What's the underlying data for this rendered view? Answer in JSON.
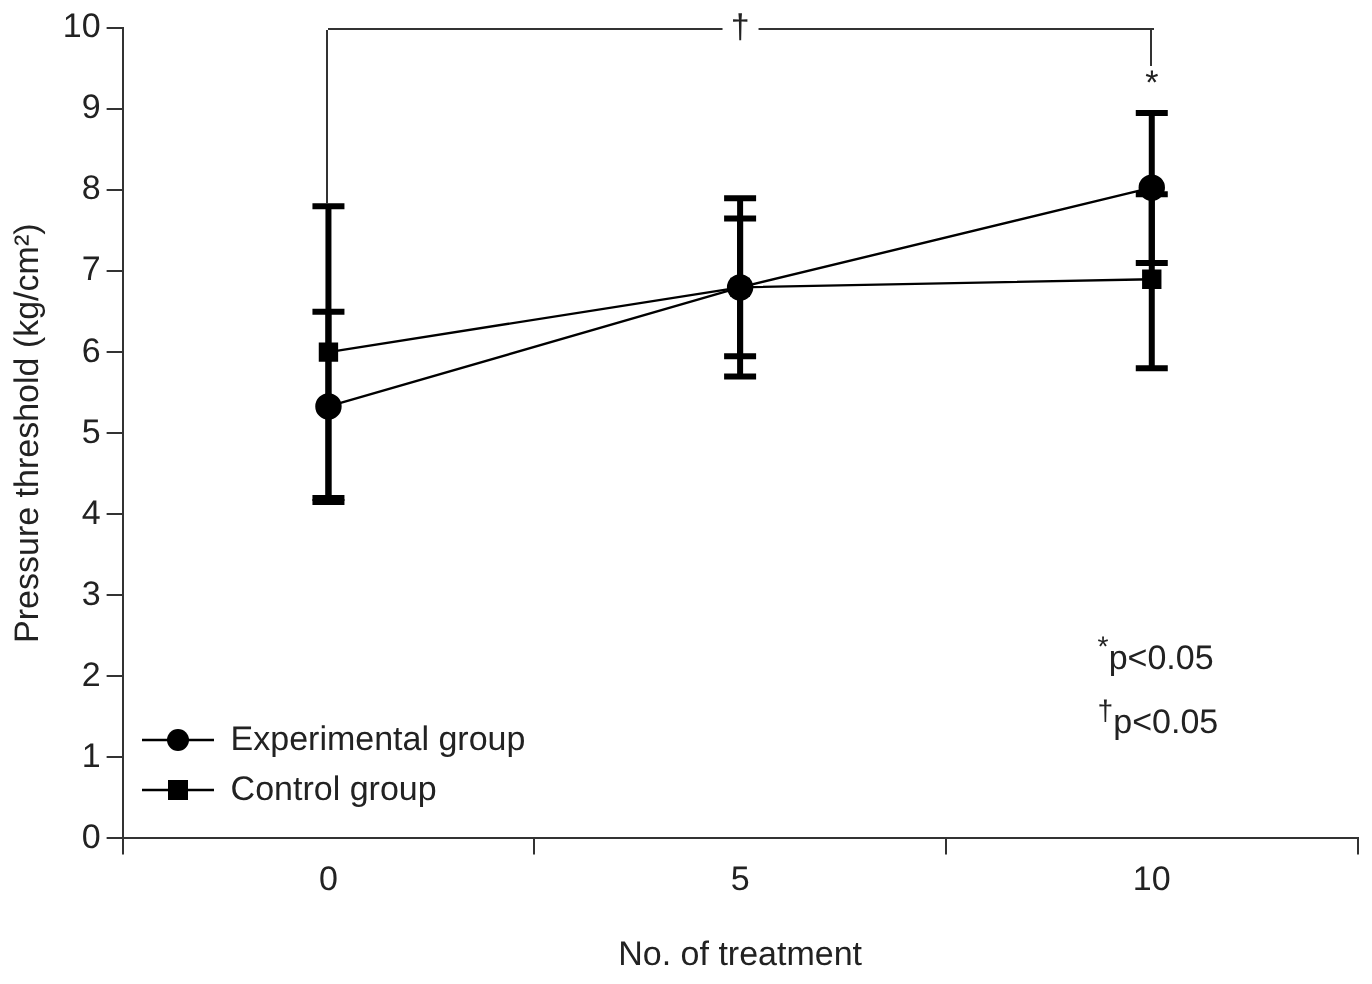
{
  "chart_data": {
    "type": "line",
    "xlabel": "No. of treatment",
    "ylabel": "Pressure threshold (kg/cm²)",
    "categories": [
      "0",
      "5",
      "10"
    ],
    "ylim": [
      0,
      10
    ],
    "yticks": [
      0,
      1,
      2,
      3,
      4,
      5,
      6,
      7,
      8,
      9,
      10
    ],
    "grid": false,
    "legend": "bottom left",
    "series": [
      {
        "name": "Experimental group",
        "color": "#000000",
        "marker": "circle",
        "values": [
          5.33,
          6.8,
          8.03
        ],
        "errors": [
          [
            4.15,
            6.5
          ],
          [
            5.7,
            7.9
          ],
          [
            7.1,
            8.95
          ]
        ]
      },
      {
        "name": "Control group",
        "color": "#000000",
        "marker": "square",
        "values": [
          6.0,
          6.8,
          6.9
        ],
        "errors": [
          [
            4.2,
            7.8
          ],
          [
            5.95,
            7.65
          ],
          [
            5.8,
            7.95
          ]
        ]
      }
    ],
    "annotations": [
      {
        "text": "†",
        "x": "5",
        "y": 10
      },
      {
        "text": "*",
        "x": "10",
        "y": 9.3
      },
      "$^{*}$p<0.05",
      "$^{†}$p<0.05"
    ]
  }
}
